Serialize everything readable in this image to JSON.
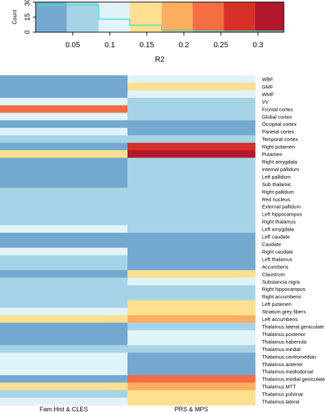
{
  "colors": {
    "c1": "#74a9cf",
    "c2": "#a6d4e6",
    "c3": "#e0f3f8",
    "c4": "#fee090",
    "c5": "#fdae61",
    "c6": "#f46d43",
    "c7": "#d73027",
    "c8": "#b2182b",
    "density_line": "#40e0d0"
  },
  "chart_data": [
    {
      "type": "bar",
      "role": "color-key-histogram",
      "xlabel": "R2",
      "ylabel": "Count",
      "x_ticks": [
        "0.05",
        "0.1",
        "0.15",
        "0.2",
        "0.25",
        "0.3"
      ],
      "y_ticks": [
        "0",
        "15",
        "30"
      ],
      "xlim": [
        0,
        0.335
      ],
      "ylim": [
        0,
        30
      ],
      "color_breaks": [
        0,
        0.042,
        0.085,
        0.127,
        0.17,
        0.212,
        0.254,
        0.296,
        0.335
      ],
      "color_keys": [
        "c1",
        "c2",
        "c3",
        "c4",
        "c5",
        "c6",
        "c7",
        "c8"
      ],
      "histogram_line": [
        {
          "x0": 0,
          "x1": 0.085,
          "count": 27
        },
        {
          "x0": 0.085,
          "x1": 0.127,
          "count": 13
        },
        {
          "x0": 0.127,
          "x1": 0.17,
          "count": 7
        },
        {
          "x0": 0.17,
          "x1": 0.212,
          "count": 2
        },
        {
          "x0": 0.212,
          "x1": 0.254,
          "count": 1
        },
        {
          "x0": 0.254,
          "x1": 0.296,
          "count": 1
        },
        {
          "x0": 0.296,
          "x1": 0.335,
          "count": 1
        }
      ]
    },
    {
      "type": "heatmap",
      "columns": [
        "Fam.Hist & CLES",
        "PRS & MPS"
      ],
      "rows": [
        "WBF",
        "GMF",
        "WMF",
        "VV",
        "Frontal cortex",
        "Global cortex",
        "Occipital cortex",
        "Parietal cortex",
        "Temporal cortex",
        "Right putamen",
        "Putamen",
        "Right amygdala",
        "Internal pallidum",
        "Left pallidum",
        "Sub thalamic",
        "Right pallidum",
        "Red nucleus",
        "External pallidum",
        "Left hippocampus",
        "Right thalamus",
        "Left amygdala",
        "Left caudate",
        "Caudate",
        "Right caudate",
        "Left thalamus",
        "Accumbens",
        "Claustrum",
        "Substancia nigra",
        "Right hippocampus",
        "Right accumbens",
        "Left putamen",
        "Striatum grey fibers",
        "Left accumbens",
        "Thalamus.lateral.geniculate",
        "Thalamus.posterior",
        "Thalamus.habenula",
        "Thalamus.medial",
        "Thalamus.centromedian",
        "Thalamus.anterior",
        "Thalamus.mediodorsal",
        "Thalamus.medial.geniculate",
        "Thalamus.MTT",
        "Thalamus.pulvinar",
        "Thalamus.lateral"
      ],
      "values": [
        [
          0.02,
          0.11
        ],
        [
          0.02,
          0.15
        ],
        [
          0.02,
          0.11
        ],
        [
          0.11,
          0.07
        ],
        [
          0.23,
          0.07
        ],
        [
          0.11,
          0.07
        ],
        [
          0.02,
          0.02
        ],
        [
          0.11,
          0.02
        ],
        [
          0.07,
          0.07
        ],
        [
          0.02,
          0.27
        ],
        [
          0.15,
          0.31
        ],
        [
          0.02,
          0.07
        ],
        [
          0.02,
          0.07
        ],
        [
          0.02,
          0.07
        ],
        [
          0.02,
          0.07
        ],
        [
          0.07,
          0.07
        ],
        [
          0.07,
          0.07
        ],
        [
          0.07,
          0.07
        ],
        [
          0.07,
          0.07
        ],
        [
          0.07,
          0.07
        ],
        [
          0.11,
          0.07
        ],
        [
          0.02,
          0.02
        ],
        [
          0.02,
          0.02
        ],
        [
          0.11,
          0.02
        ],
        [
          0.07,
          0.02
        ],
        [
          0.07,
          0.02
        ],
        [
          0.02,
          0.15
        ],
        [
          0.07,
          0.11
        ],
        [
          0.07,
          0.07
        ],
        [
          0.07,
          0.07
        ],
        [
          0.07,
          0.15
        ],
        [
          0.11,
          0.15
        ],
        [
          0.15,
          0.19
        ],
        [
          0.02,
          0.07
        ],
        [
          0.02,
          0.11
        ],
        [
          0.02,
          0.11
        ],
        [
          0.07,
          0.07
        ],
        [
          0.11,
          0.02
        ],
        [
          0.11,
          0.02
        ],
        [
          0.11,
          0.02
        ],
        [
          0.02,
          0.23
        ],
        [
          0.15,
          0.19
        ],
        [
          0.07,
          0.15
        ],
        [
          0.11,
          0.15
        ]
      ]
    }
  ]
}
